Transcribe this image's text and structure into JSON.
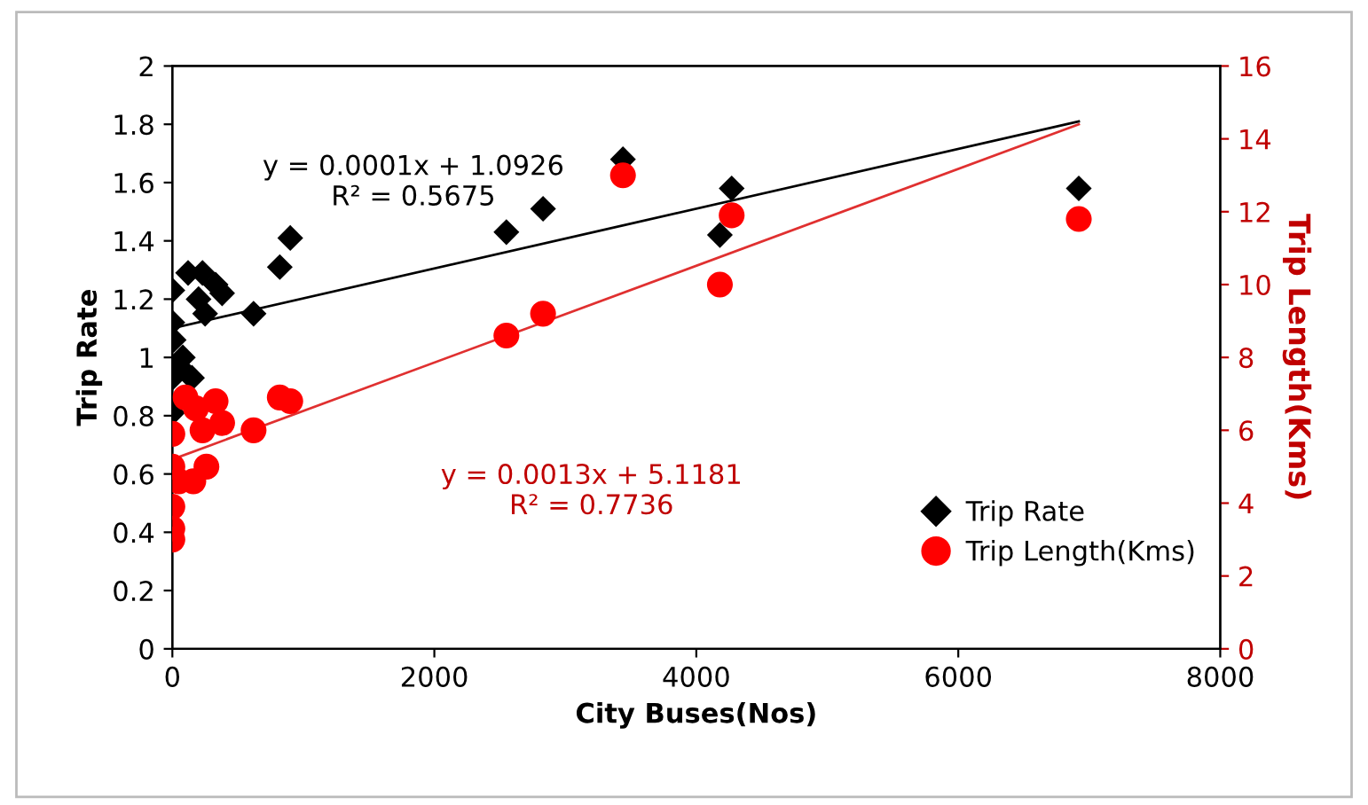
{
  "chart_data": {
    "type": "scatter",
    "xlabel": "City Buses(Nos)",
    "ylabel": "Trip Rate",
    "y2label": "Trip Length(Kms)",
    "xlim": [
      0,
      8000
    ],
    "xticks": [
      0,
      2000,
      4000,
      6000,
      8000
    ],
    "ylim": [
      0,
      2
    ],
    "yticks": [
      0,
      0.2,
      0.4,
      0.6,
      0.8,
      1,
      1.2,
      1.4,
      1.6,
      1.8,
      2
    ],
    "y2lim": [
      0,
      16
    ],
    "y2ticks": [
      0,
      2,
      4,
      6,
      8,
      10,
      12,
      14,
      16
    ],
    "grid": false,
    "legend": "bottom right",
    "annotations": [
      "y = 0.0001x + 1.0926\nR² = 0.5675",
      "y = 0.0013x + 5.1181\nR² = 0.7736"
    ],
    "series": [
      {
        "name": "Trip Rate",
        "color": "#000000",
        "marker": "diamond",
        "x": [
          0,
          0,
          10,
          0,
          0,
          50,
          80,
          120,
          150,
          200,
          230,
          250,
          330,
          380,
          620,
          820,
          900,
          2550,
          2830,
          3440,
          4180,
          4270,
          6920
        ],
        "values": [
          1.23,
          1.12,
          1.06,
          0.93,
          0.81,
          0.97,
          1.0,
          1.29,
          0.93,
          1.2,
          1.29,
          1.15,
          1.25,
          1.22,
          1.15,
          1.31,
          1.41,
          1.43,
          1.51,
          1.68,
          1.42,
          1.58,
          1.58
        ]
      },
      {
        "name": "Trip Length(Kms)",
        "color": "#ff0000",
        "marker": "circle",
        "axis": "y2",
        "x": [
          0,
          0,
          0,
          0,
          0,
          50,
          80,
          100,
          160,
          180,
          230,
          260,
          330,
          380,
          620,
          820,
          900,
          2550,
          2830,
          3440,
          4180,
          4270,
          6920
        ],
        "values": [
          5.9,
          5.0,
          3.9,
          3.3,
          3.0,
          4.6,
          null,
          6.9,
          4.6,
          6.6,
          6.0,
          5.0,
          6.8,
          6.2,
          6.0,
          6.9,
          6.8,
          8.6,
          9.2,
          13.0,
          10.0,
          11.9,
          11.8
        ]
      },
      {
        "type": "line",
        "color": "#000000",
        "marker": "none",
        "x": [
          0,
          6920
        ],
        "values": [
          1.1,
          1.81
        ]
      },
      {
        "type": "line",
        "color": "#e03030",
        "marker": "none",
        "axis": "y2",
        "x": [
          0,
          6920
        ],
        "values": [
          5.2,
          14.4
        ]
      }
    ]
  }
}
